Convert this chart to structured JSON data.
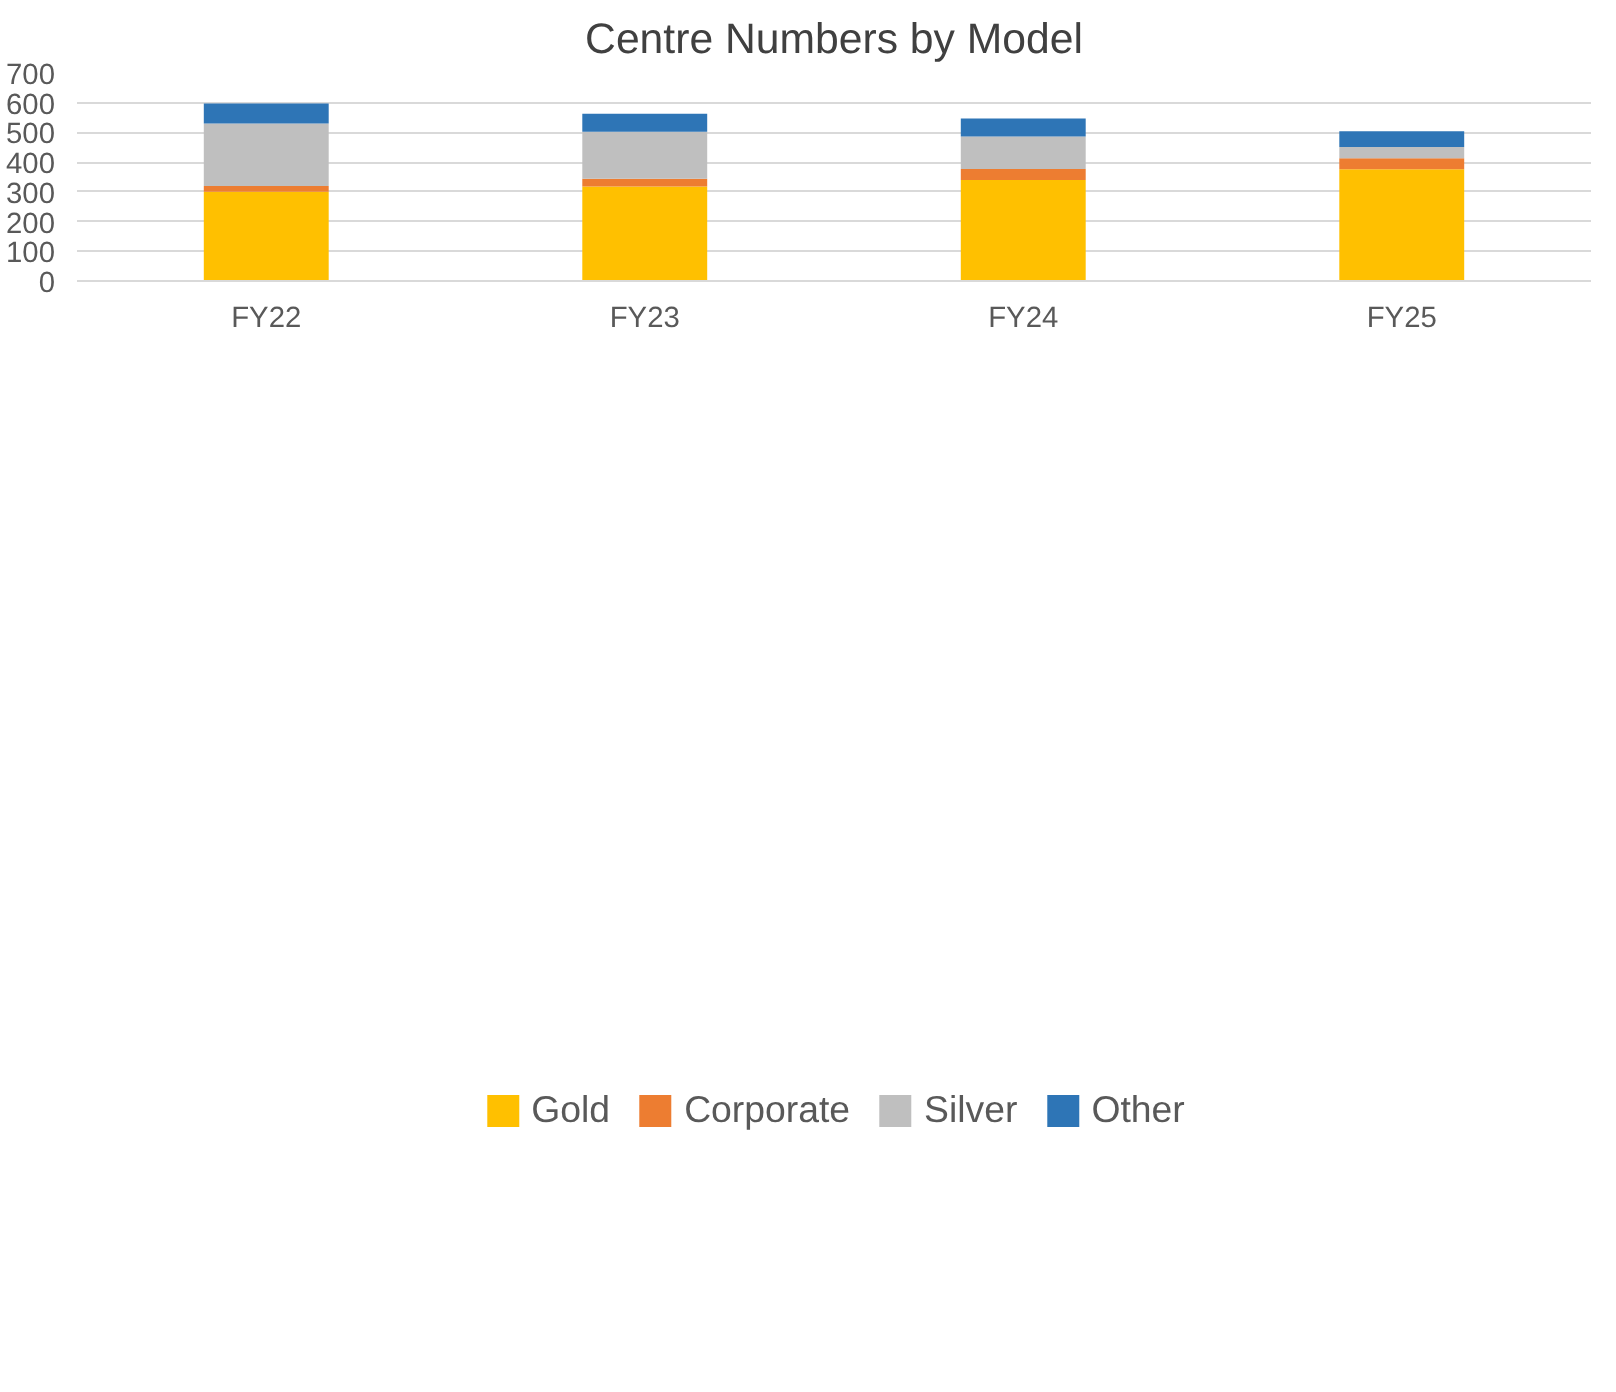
{
  "chart_data": {
    "type": "bar",
    "title": "Centre Numbers by Model",
    "stacked": true,
    "categories": [
      "FY22",
      "FY23",
      "FY24",
      "FY25"
    ],
    "series": [
      {
        "name": "Gold",
        "color": "#ffc000",
        "values": [
          300,
          318,
          340,
          376
        ]
      },
      {
        "name": "Corporate",
        "color": "#ed7d31",
        "values": [
          20,
          26,
          37,
          37
        ]
      },
      {
        "name": "Silver",
        "color": "#bfbfbf",
        "values": [
          210,
          158,
          109,
          38
        ]
      },
      {
        "name": "Other",
        "color": "#2e75b6",
        "values": [
          67,
          61,
          61,
          53
        ]
      }
    ],
    "ylim": [
      0,
      700
    ],
    "yticks": [
      0,
      100,
      200,
      300,
      400,
      500,
      600,
      700
    ],
    "grid": "y",
    "legend": "bottom"
  }
}
